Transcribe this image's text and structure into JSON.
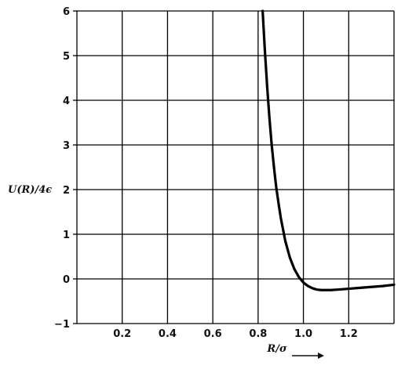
{
  "chart_data": {
    "type": "line",
    "xlabel": "R/σ",
    "ylabel": "U(R)/4ϵ",
    "xlim": [
      0.0,
      1.4
    ],
    "ylim": [
      -1,
      6
    ],
    "grid": true,
    "x_ticks": [
      0.2,
      0.4,
      0.6,
      0.8,
      1.0,
      1.2
    ],
    "x_tick_labels": [
      "0.2",
      "0.4",
      "0.6",
      "0.8",
      "1.0",
      "1.2"
    ],
    "y_ticks": [
      -1,
      0,
      1,
      2,
      3,
      4,
      5,
      6
    ],
    "y_tick_labels": [
      "−1",
      "0",
      "1",
      "2",
      "3",
      "4",
      "5",
      "6"
    ],
    "series": [
      {
        "x": [
          0.82,
          0.83,
          0.84,
          0.85,
          0.86,
          0.87,
          0.88,
          0.89,
          0.9,
          0.92,
          0.94,
          0.96,
          0.98,
          1.0,
          1.02,
          1.04,
          1.06,
          1.08,
          1.1,
          1.12,
          1.15,
          1.2,
          1.25,
          1.3,
          1.35,
          1.4
        ],
        "y": [
          6.0,
          5.1,
          4.3,
          3.6,
          3.0,
          2.5,
          2.05,
          1.7,
          1.37,
          0.85,
          0.48,
          0.22,
          0.04,
          -0.08,
          -0.16,
          -0.21,
          -0.24,
          -0.25,
          -0.25,
          -0.25,
          -0.24,
          -0.22,
          -0.2,
          -0.18,
          -0.16,
          -0.13
        ],
        "color": "#000000"
      }
    ],
    "colors": {
      "grid": "#000000",
      "curve": "#000000",
      "background": "#ffffff"
    }
  }
}
